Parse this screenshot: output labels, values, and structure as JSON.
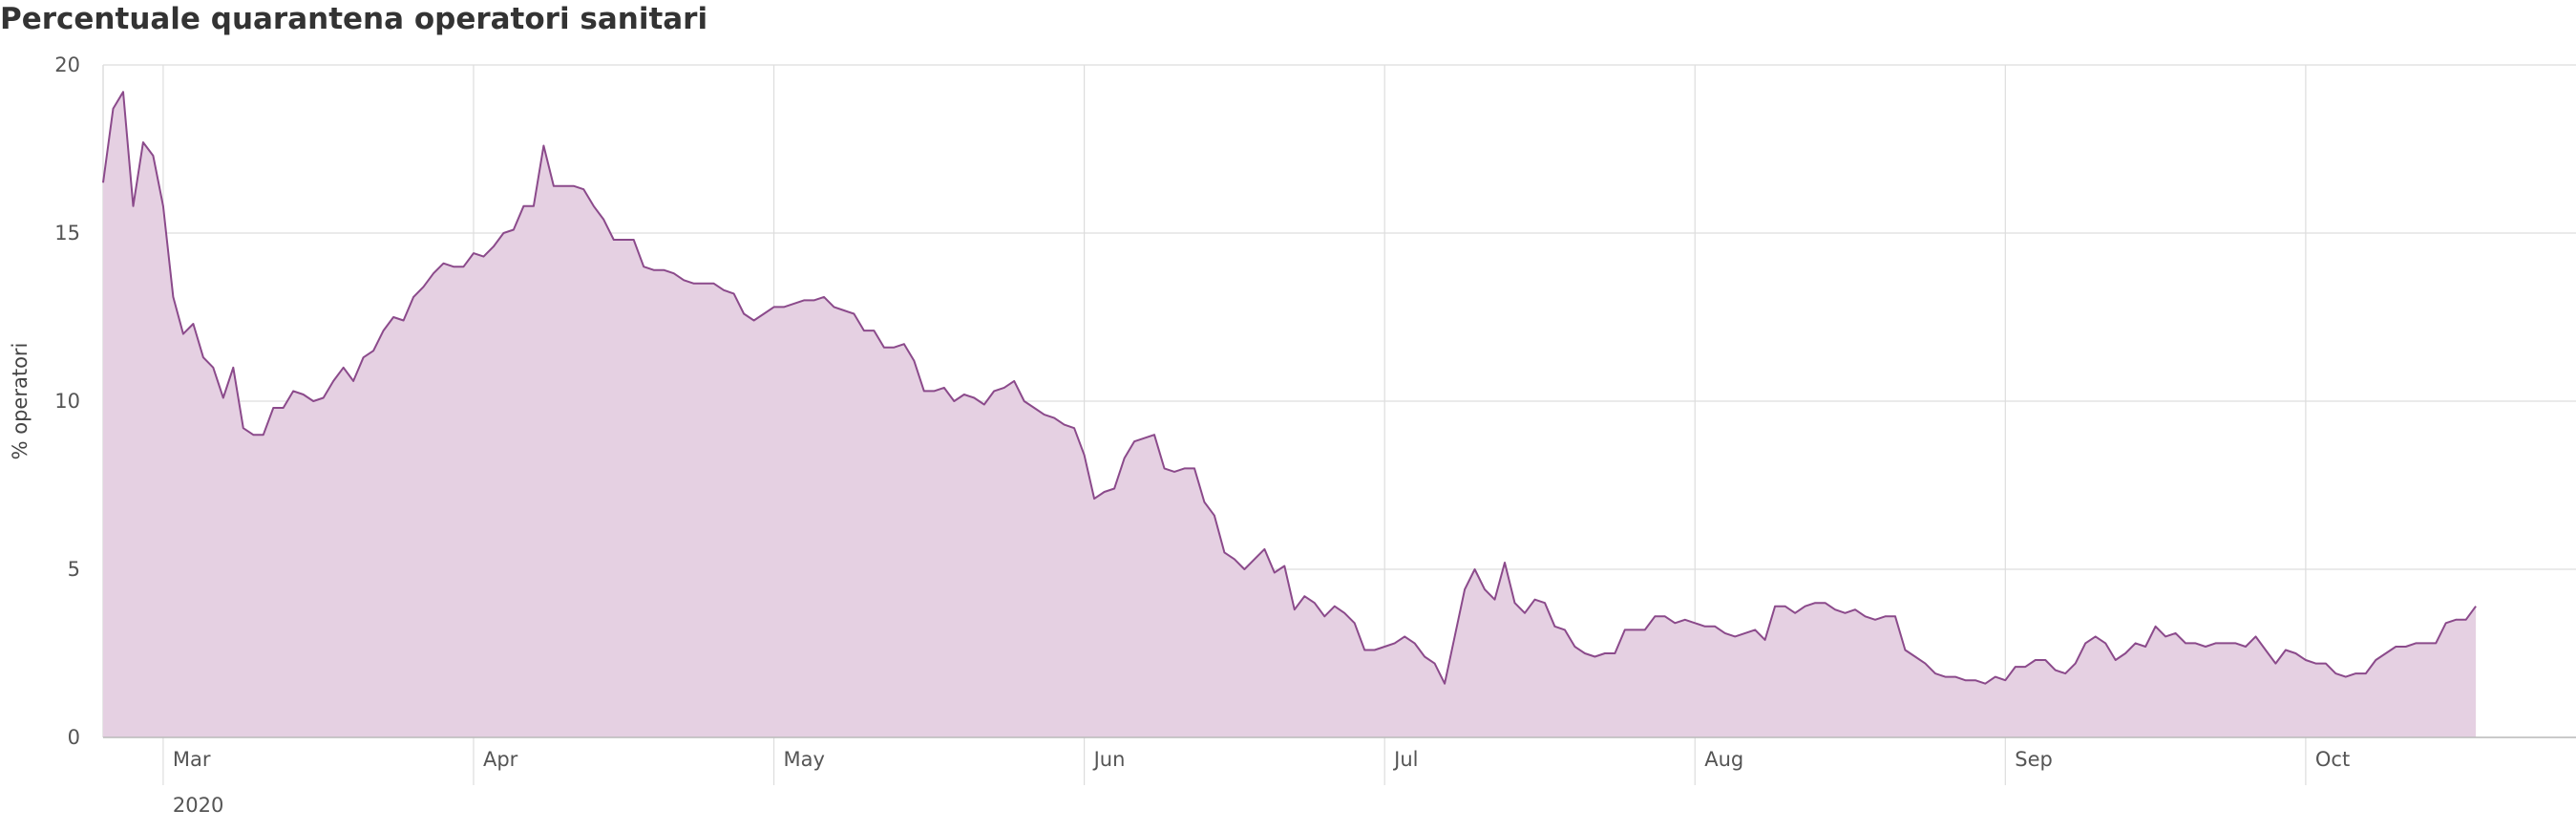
{
  "chart_data": {
    "type": "area",
    "title": "Percentuale quarantena operatori sanitari",
    "ylabel": "% operatori",
    "xlabel": "",
    "ylim": [
      0,
      20
    ],
    "y_ticks": [
      0,
      5,
      10,
      15,
      20
    ],
    "x_range": [
      "2020-02-24",
      "2020-10-28"
    ],
    "x_ticks": [
      {
        "date": "2020-03-01",
        "label": "Mar"
      },
      {
        "date": "2020-04-01",
        "label": "Apr"
      },
      {
        "date": "2020-05-01",
        "label": "May"
      },
      {
        "date": "2020-06-01",
        "label": "Jun"
      },
      {
        "date": "2020-07-01",
        "label": "Jul"
      },
      {
        "date": "2020-08-01",
        "label": "Aug"
      },
      {
        "date": "2020-09-01",
        "label": "Sep"
      },
      {
        "date": "2020-10-01",
        "label": "Oct"
      }
    ],
    "year_label": "2020",
    "grid": true,
    "colors": {
      "line": "#8b4a8b",
      "fill": "#e5d0e2",
      "grid": "#dddddd"
    },
    "series": [
      {
        "start": "2020-02-24",
        "values": [
          16.5,
          18.7,
          19.2,
          15.8,
          17.7,
          17.3,
          15.8,
          13.1,
          12.0,
          12.3,
          11.3,
          11.0,
          10.1,
          11.0,
          9.2,
          9.0,
          9.0,
          9.8,
          9.8,
          10.3,
          10.2,
          10.0,
          10.1,
          10.6,
          11.0,
          10.6,
          11.3,
          11.5,
          12.1,
          12.5,
          12.4,
          13.1,
          13.4,
          13.8,
          14.1,
          14.0,
          14.0,
          14.4,
          14.3,
          14.6,
          15.0,
          15.1,
          15.8,
          15.8,
          17.6,
          16.4,
          16.4,
          16.4,
          16.3,
          15.8,
          15.4,
          14.8,
          14.8,
          14.8,
          14.0,
          13.9,
          13.9,
          13.8,
          13.6,
          13.5,
          13.5,
          13.5,
          13.3,
          13.2,
          12.6,
          12.4,
          12.6,
          12.8,
          12.8,
          12.9,
          13.0,
          13.0,
          13.1,
          12.8,
          12.7,
          12.6,
          12.1,
          12.1,
          11.6,
          11.6,
          11.7,
          11.2,
          10.3,
          10.3,
          10.4,
          10.0,
          10.2,
          10.1,
          9.9,
          10.3,
          10.4,
          10.6,
          10.0,
          9.8,
          9.6,
          9.5,
          9.3,
          9.2,
          8.4,
          7.1,
          7.3,
          7.4,
          8.3,
          8.8,
          8.9,
          9.0,
          8.0,
          7.9,
          8.0,
          8.0,
          7.0,
          6.6,
          5.5,
          5.3,
          5.0,
          5.3,
          5.6,
          4.9,
          5.1,
          3.8,
          4.2,
          4.0,
          3.6,
          3.9,
          3.7,
          3.4,
          2.6,
          2.6,
          2.7,
          2.8,
          3.0,
          2.8,
          2.4,
          2.2,
          1.6,
          3.0,
          4.4,
          5.0,
          4.4,
          4.1,
          5.2,
          4.0,
          3.7,
          4.1,
          4.0,
          3.3,
          3.2,
          2.7,
          2.5,
          2.4,
          2.5,
          2.5,
          3.2,
          3.2,
          3.2,
          3.6,
          3.6,
          3.4,
          3.5,
          3.4,
          3.3,
          3.3,
          3.1,
          3.0,
          3.1,
          3.2,
          2.9,
          3.9,
          3.9,
          3.7,
          3.9,
          4.0,
          4.0,
          3.8,
          3.7,
          3.8,
          3.6,
          3.5,
          3.6,
          3.6,
          2.6,
          2.4,
          2.2,
          1.9,
          1.8,
          1.8,
          1.7,
          1.7,
          1.6,
          1.8,
          1.7,
          2.1,
          2.1,
          2.3,
          2.3,
          2.0,
          1.9,
          2.2,
          2.8,
          3.0,
          2.8,
          2.3,
          2.5,
          2.8,
          2.7,
          3.3,
          3.0,
          3.1,
          2.8,
          2.8,
          2.7,
          2.8,
          2.8,
          2.8,
          2.7,
          3.0,
          2.6,
          2.2,
          2.6,
          2.5,
          2.3,
          2.2,
          2.2,
          1.9,
          1.8,
          1.9,
          1.9,
          2.3,
          2.5,
          2.7,
          2.7,
          2.8,
          2.8,
          2.8,
          3.4,
          3.5,
          3.5,
          3.9
        ]
      }
    ]
  }
}
